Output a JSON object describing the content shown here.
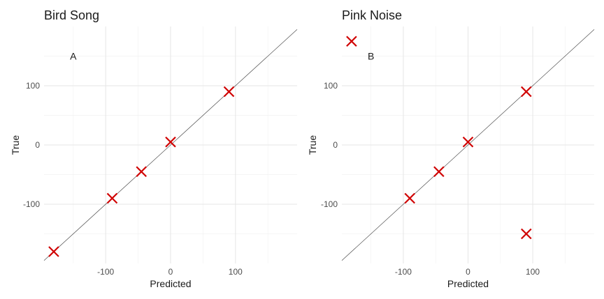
{
  "chart_data": [
    {
      "type": "scatter",
      "title": "Bird Song",
      "xlabel": "Predicted",
      "ylabel": "True",
      "xlim": [
        -195,
        195
      ],
      "ylim": [
        -200,
        200
      ],
      "x_ticks": [
        -100,
        0,
        100
      ],
      "y_ticks": [
        -100,
        0,
        100
      ],
      "grid": true,
      "reference_line": "y = x",
      "annotation": {
        "text": "A",
        "x": -150,
        "y": 150
      },
      "marker": {
        "shape": "x",
        "color": "#d00000"
      },
      "points": [
        {
          "x": -180,
          "y": -180
        },
        {
          "x": -90,
          "y": -90
        },
        {
          "x": -45,
          "y": -45
        },
        {
          "x": 0,
          "y": 5
        },
        {
          "x": 90,
          "y": 90
        }
      ]
    },
    {
      "type": "scatter",
      "title": "Pink Noise",
      "xlabel": "Predicted",
      "ylabel": "True",
      "xlim": [
        -195,
        195
      ],
      "ylim": [
        -200,
        200
      ],
      "x_ticks": [
        -100,
        0,
        100
      ],
      "y_ticks": [
        -100,
        0,
        100
      ],
      "grid": true,
      "reference_line": "y = x",
      "annotation": {
        "text": "B",
        "x": -150,
        "y": 150
      },
      "marker": {
        "shape": "x",
        "color": "#d00000"
      },
      "points": [
        {
          "x": -180,
          "y": 175
        },
        {
          "x": -90,
          "y": -90
        },
        {
          "x": -45,
          "y": -45
        },
        {
          "x": 0,
          "y": 5
        },
        {
          "x": 90,
          "y": 90
        },
        {
          "x": 90,
          "y": -150
        }
      ]
    }
  ]
}
